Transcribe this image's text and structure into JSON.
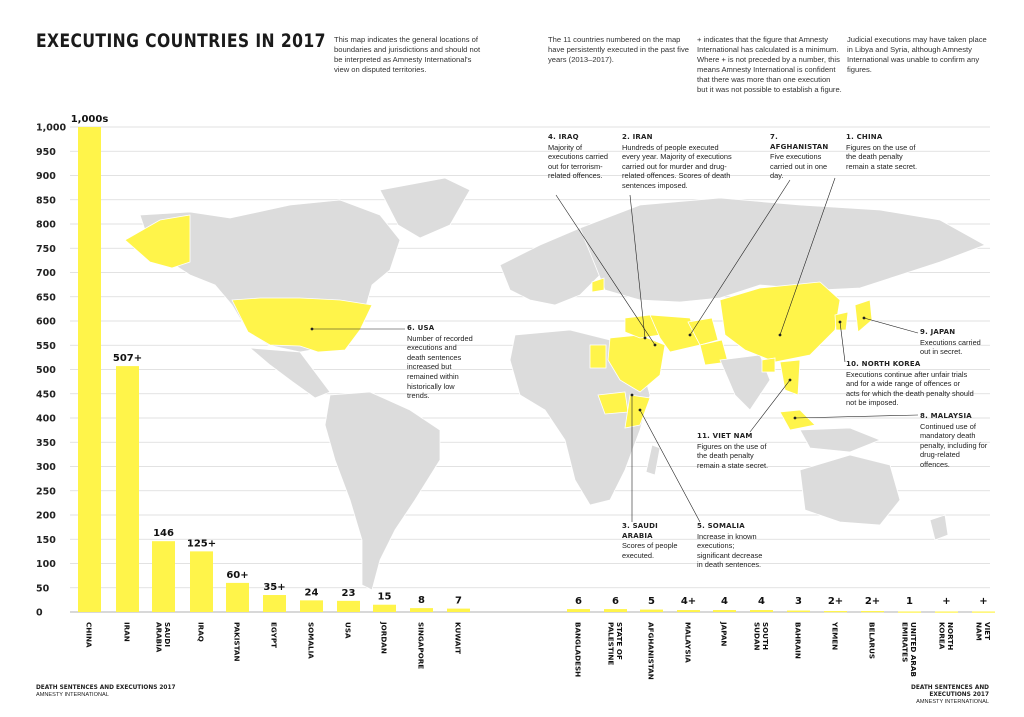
{
  "title": "EXECUTING COUNTRIES IN 2017",
  "notes": [
    "This map indicates the general locations of boundaries and jurisdictions and should not be interpreted as Amnesty International's view on disputed territories.",
    "The 11 countries numbered on the map have persistently executed in the past five years (2013–2017).",
    "+ indicates that the figure that Amnesty International has calculated is a minimum. Where + is not preceded by a number, this means Amnesty International is confident that there was more than one execution but it was not possible to establish a figure.",
    "Judicial executions may have taken place in Libya and Syria, although Amnesty International was unable to confirm any figures."
  ],
  "annotations": [
    {
      "head": "4. IRAQ",
      "body": "Majority of executions carried out for terrorism-related offences."
    },
    {
      "head": "2. IRAN",
      "body": "Hundreds of people executed every year. Majority of executions carried out for murder and drug-related offences. Scores of death sentences imposed."
    },
    {
      "head": "7. AFGHANISTAN",
      "body": "Five executions carried out in one day."
    },
    {
      "head": "1. CHINA",
      "body": "Figures on the use of the death penalty remain a state secret."
    },
    {
      "head": "6. USA",
      "body": "Number of recorded executions and death sentences increased but remained within historically low trends."
    },
    {
      "head": "9. JAPAN",
      "body": "Executions carried out in secret."
    },
    {
      "head": "10. NORTH KOREA",
      "body": "Executions continue after unfair trials and for a wide range of offences or acts for which the death penalty should not be imposed."
    },
    {
      "head": "8. MALAYSIA",
      "body": "Continued use of mandatory death penalty, including for drug-related offences."
    },
    {
      "head": "11. VIET NAM",
      "body": "Figures on the use of the death penalty remain a state secret."
    },
    {
      "head": "3. SAUDI ARABIA",
      "body": "Scores of people executed."
    },
    {
      "head": "5. SOMALIA",
      "body": "Increase in known executions; significant decrease in death sentences."
    }
  ],
  "footer": {
    "left_title": "DEATH SENTENCES AND EXECUTIONS 2017",
    "left_sub": "AMNESTY INTERNATIONAL",
    "right_title": "DEATH SENTENCES AND EXECUTIONS 2017",
    "right_sub": "AMNESTY INTERNATIONAL"
  },
  "colors": {
    "bar": "#fff44a",
    "map_land": "#dcdcdc",
    "map_highlight": "#fff44a",
    "grid": "#d9d9d9"
  },
  "chart_data": {
    "type": "bar",
    "yticks": [
      0,
      50,
      100,
      150,
      200,
      250,
      300,
      350,
      400,
      450,
      500,
      550,
      600,
      650,
      700,
      750,
      800,
      850,
      900,
      950,
      "1,000"
    ],
    "ylim": [
      0,
      1000
    ],
    "grid": true,
    "categories": [
      "CHINA",
      "IRAN",
      "SAUDI ARABIA",
      "IRAQ",
      "PAKISTAN",
      "EGYPT",
      "SOMALIA",
      "USA",
      "JORDAN",
      "SINGAPORE",
      "KUWAIT",
      "BANGLADESH",
      "STATE OF PALESTINE",
      "AFGHANISTAN",
      "MALAYSIA",
      "JAPAN",
      "SOUTH SUDAN",
      "BAHRAIN",
      "YEMEN",
      "BELARUS",
      "UNITED ARAB EMIRATES",
      "NORTH KOREA",
      "VIET NAM"
    ],
    "values": [
      1000,
      507,
      146,
      125,
      60,
      35,
      24,
      23,
      15,
      8,
      7,
      6,
      6,
      5,
      4,
      4,
      4,
      3,
      2,
      2,
      1,
      1,
      1
    ],
    "labels": [
      "1,000s",
      "507+",
      "146",
      "125+",
      "60+",
      "35+",
      "24",
      "23",
      "15",
      "8",
      "7",
      "6",
      "6",
      "5",
      "4+",
      "4",
      "4",
      "3",
      "2+",
      "2+",
      "1",
      "+",
      "+"
    ]
  }
}
